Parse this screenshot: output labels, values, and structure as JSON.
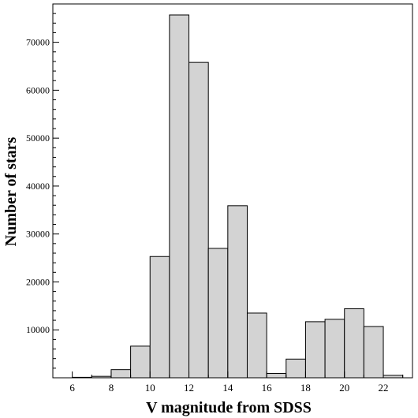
{
  "chart_data": {
    "type": "bar",
    "xlabel": "V magnitude from SDSS",
    "ylabel": "Number of stars",
    "xlim": [
      5,
      23.5
    ],
    "ylim": [
      0,
      78000
    ],
    "x_ticks": [
      6,
      8,
      10,
      12,
      14,
      16,
      18,
      20,
      22
    ],
    "y_ticks": [
      10000,
      20000,
      30000,
      40000,
      50000,
      60000,
      70000
    ],
    "bin_width": 1,
    "bins": [
      {
        "start": 6,
        "value": 100
      },
      {
        "start": 7,
        "value": 300
      },
      {
        "start": 8,
        "value": 1700
      },
      {
        "start": 9,
        "value": 6600
      },
      {
        "start": 10,
        "value": 25300
      },
      {
        "start": 11,
        "value": 75700
      },
      {
        "start": 12,
        "value": 65800
      },
      {
        "start": 13,
        "value": 27000
      },
      {
        "start": 14,
        "value": 35900
      },
      {
        "start": 15,
        "value": 13500
      },
      {
        "start": 16,
        "value": 900
      },
      {
        "start": 17,
        "value": 3900
      },
      {
        "start": 18,
        "value": 11700
      },
      {
        "start": 19,
        "value": 12200
      },
      {
        "start": 20,
        "value": 14400
      },
      {
        "start": 21,
        "value": 10700
      },
      {
        "start": 22,
        "value": 500
      }
    ],
    "bar_color": "#d3d3d3",
    "edge_color": "#000000",
    "grid": false
  }
}
